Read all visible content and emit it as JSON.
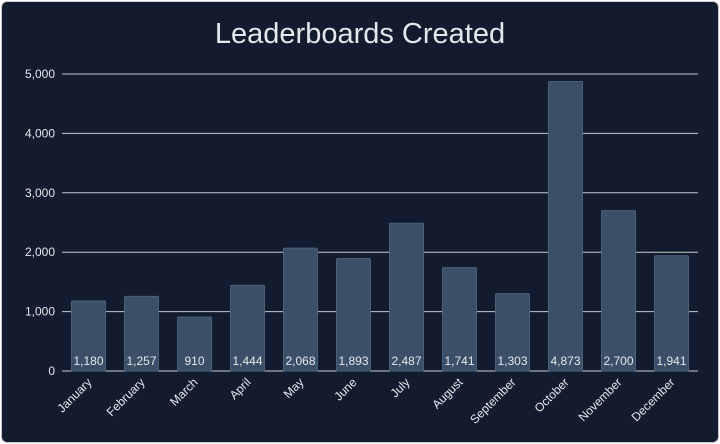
{
  "chart_data": {
    "type": "bar",
    "title": "Leaderboards Created",
    "xlabel": "",
    "ylabel": "",
    "categories": [
      "January",
      "February",
      "March",
      "April",
      "May",
      "June",
      "July",
      "August",
      "September",
      "October",
      "November",
      "December"
    ],
    "values": [
      1180,
      1257,
      910,
      1444,
      2068,
      1893,
      2487,
      1741,
      1303,
      4873,
      2700,
      1941
    ],
    "value_labels": [
      "1,180",
      "1,257",
      "910",
      "1,444",
      "2,068",
      "1,893",
      "2,487",
      "1,741",
      "1,303",
      "4,873",
      "2,700",
      "1,941"
    ],
    "ylim": [
      0,
      5000
    ],
    "yticks": [
      0,
      1000,
      2000,
      3000,
      4000,
      5000
    ],
    "ytick_labels": [
      "0",
      "1,000",
      "2,000",
      "3,000",
      "4,000",
      "5,000"
    ],
    "grid": true,
    "legend": "none",
    "colors": {
      "background": "#131c2e",
      "bar": "#3b5068",
      "grid": "#e8eaee",
      "text": "#e4e7ec"
    }
  }
}
